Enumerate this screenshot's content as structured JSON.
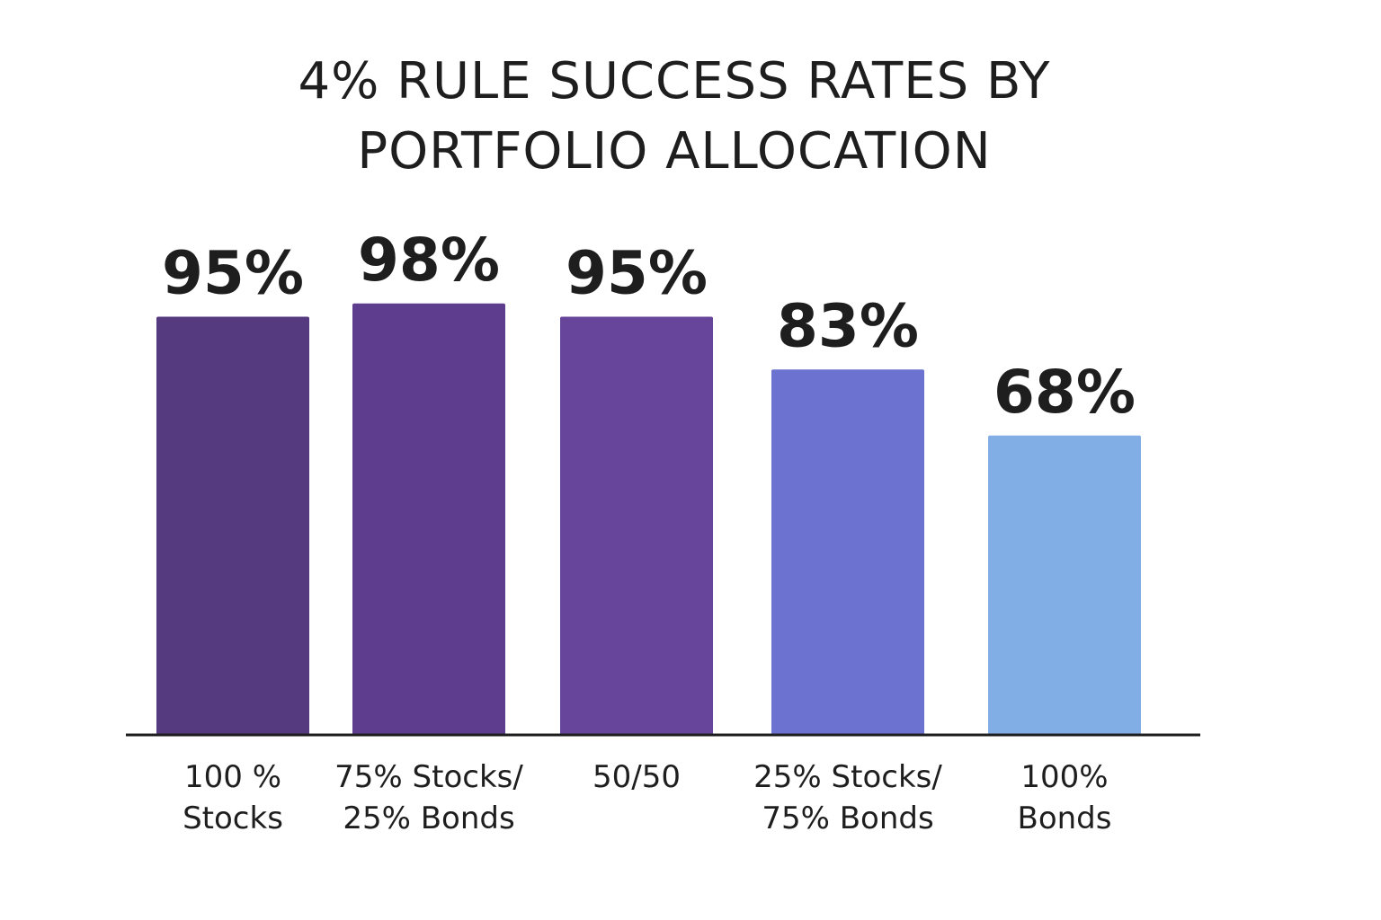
{
  "chart_data": {
    "type": "bar",
    "title": "4% RULE SUCCESS RATES BY\nPORTFOLIO ALLOCATION",
    "categories": [
      "100 %\nStocks",
      "75% Stocks/\n25% Bonds",
      "50/50",
      "25% Stocks/\n75% Bonds",
      "100%\nBonds"
    ],
    "values": [
      95,
      98,
      95,
      83,
      68
    ],
    "value_labels": [
      "95%",
      "98%",
      "95%",
      "83%",
      "68%"
    ],
    "colors": [
      "#553a80",
      "#5e3d8e",
      "#66459a",
      "#6c72d0",
      "#82aee6"
    ]
  }
}
